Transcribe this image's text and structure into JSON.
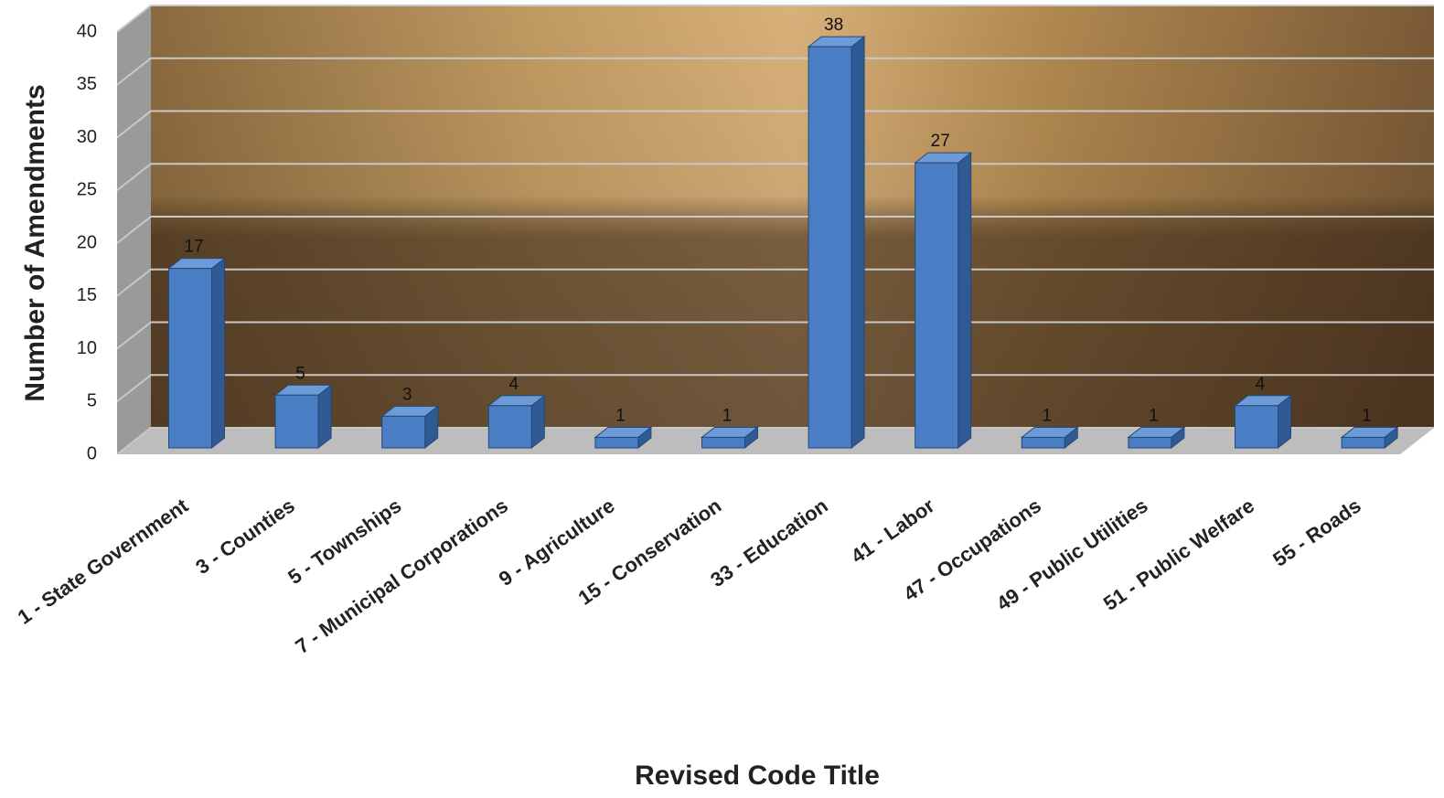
{
  "chart_data": {
    "type": "bar3d",
    "x_label": "Revised Code Title",
    "y_label": "Number of Amendments",
    "categories": [
      "1 - State Government",
      "3 - Counties",
      "5 - Townships",
      "7 - Municipal Corporations",
      "9 - Agriculture",
      "15 - Conservation",
      "33 - Education",
      "41 - Labor",
      "47 - Occupations",
      "49 - Public Utilities",
      "51 - Public Welfare",
      "55 - Roads"
    ],
    "values": [
      17,
      5,
      3,
      4,
      1,
      1,
      38,
      27,
      1,
      1,
      4,
      1
    ],
    "color": "#4a7ec4",
    "ylim": [
      0,
      40
    ],
    "yticks": [
      0,
      5,
      10,
      15,
      20,
      25,
      30,
      35,
      40
    ],
    "grid": true
  }
}
